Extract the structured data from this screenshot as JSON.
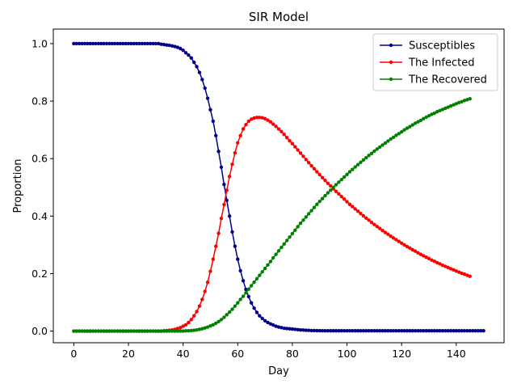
{
  "chart_data": {
    "type": "line",
    "title": "SIR Model",
    "xlabel": "Day",
    "ylabel": "Proportion",
    "xlim": [
      -7.5,
      157.5
    ],
    "ylim": [
      -0.0405,
      1.0505
    ],
    "xticks": [
      0,
      20,
      40,
      60,
      80,
      100,
      120,
      140
    ],
    "yticks": [
      0.0,
      0.2,
      0.4,
      0.6,
      0.8,
      1.0
    ],
    "xtick_labels": [
      "0",
      "20",
      "40",
      "60",
      "80",
      "100",
      "120",
      "140"
    ],
    "ytick_labels": [
      "0.0",
      "0.2",
      "0.4",
      "0.6",
      "0.8",
      "1.0"
    ],
    "legend_position": "top-right",
    "grid": false,
    "x_start": 0,
    "x_step": 1,
    "series": [
      {
        "name": "Susceptibles",
        "color": "#00008b",
        "values": [
          1.0,
          1.0,
          1.0,
          1.0,
          1.0,
          1.0,
          1.0,
          1.0,
          1.0,
          1.0,
          1.0,
          1.0,
          1.0,
          1.0,
          1.0,
          1.0,
          1.0,
          1.0,
          1.0,
          1.0,
          1.0,
          1.0,
          1.0,
          1.0,
          1.0,
          1.0,
          1.0,
          1.0,
          1.0,
          1.0,
          1.0,
          1.0,
          0.998,
          0.997,
          0.995,
          0.994,
          0.992,
          0.99,
          0.987,
          0.983,
          0.977,
          0.968,
          0.96,
          0.95,
          0.935,
          0.92,
          0.9,
          0.875,
          0.845,
          0.81,
          0.77,
          0.73,
          0.68,
          0.625,
          0.57,
          0.51,
          0.455,
          0.4,
          0.345,
          0.295,
          0.25,
          0.21,
          0.175,
          0.145,
          0.12,
          0.098,
          0.08,
          0.065,
          0.053,
          0.044,
          0.036,
          0.03,
          0.025,
          0.021,
          0.017,
          0.014,
          0.012,
          0.01,
          0.009,
          0.008,
          0.007,
          0.006,
          0.005,
          0.004,
          0.0035,
          0.003,
          0.0025,
          0.002,
          0.0018,
          0.0016,
          0.0014,
          0.0012,
          0.001,
          0.001,
          0.001,
          0.001,
          0.001,
          0.001,
          0.001,
          0.001,
          0.001,
          0.001,
          0.001,
          0.001,
          0.001,
          0.001,
          0.001,
          0.001,
          0.001,
          0.001,
          0.001,
          0.001,
          0.001,
          0.001,
          0.001,
          0.001,
          0.001,
          0.001,
          0.001,
          0.001,
          0.001,
          0.001,
          0.001,
          0.001,
          0.001,
          0.001,
          0.001,
          0.001,
          0.001,
          0.001,
          0.001,
          0.001,
          0.001,
          0.001,
          0.001,
          0.001,
          0.001,
          0.001,
          0.001,
          0.001,
          0.001,
          0.001,
          0.001,
          0.001,
          0.001,
          0.001,
          0.001,
          0.001,
          0.001,
          0.001,
          0.001
        ]
      },
      {
        "name": "The Infected",
        "color": "#ff0000",
        "values": [
          0.0,
          0.0,
          0.0,
          0.0,
          0.0,
          0.0,
          0.0,
          0.0,
          0.0,
          0.0,
          0.0,
          0.0,
          0.0,
          0.0,
          0.0,
          0.0,
          0.0,
          0.0,
          0.0,
          0.0,
          0.0,
          0.0,
          0.0,
          0.0,
          0.0,
          0.0,
          0.0,
          0.0,
          0.0,
          0.0,
          0.0,
          0.0,
          0.0,
          0.001,
          0.002,
          0.003,
          0.004,
          0.006,
          0.009,
          0.012,
          0.017,
          0.022,
          0.03,
          0.04,
          0.053,
          0.068,
          0.087,
          0.11,
          0.138,
          0.17,
          0.208,
          0.25,
          0.295,
          0.34,
          0.392,
          0.44,
          0.49,
          0.538,
          0.58,
          0.62,
          0.655,
          0.68,
          0.703,
          0.718,
          0.73,
          0.737,
          0.741,
          0.743,
          0.743,
          0.742,
          0.739,
          0.734,
          0.728,
          0.72,
          0.712,
          0.703,
          0.694,
          0.684,
          0.673,
          0.662,
          0.652,
          0.641,
          0.63,
          0.619,
          0.608,
          0.597,
          0.586,
          0.575,
          0.565,
          0.554,
          0.544,
          0.534,
          0.524,
          0.514,
          0.505,
          0.495,
          0.486,
          0.477,
          0.468,
          0.459,
          0.45,
          0.441,
          0.433,
          0.425,
          0.417,
          0.409,
          0.401,
          0.393,
          0.386,
          0.378,
          0.371,
          0.364,
          0.357,
          0.35,
          0.343,
          0.337,
          0.33,
          0.324,
          0.318,
          0.312,
          0.306,
          0.3,
          0.294,
          0.289,
          0.283,
          0.278,
          0.272,
          0.267,
          0.262,
          0.257,
          0.252,
          0.247,
          0.243,
          0.238,
          0.234,
          0.229,
          0.225,
          0.221,
          0.217,
          0.213,
          0.209,
          0.205,
          0.201,
          0.198,
          0.194,
          0.191
        ]
      },
      {
        "name": "The Recovered",
        "color": "#008000",
        "values": [
          0.0,
          0.0,
          0.0,
          0.0,
          0.0,
          0.0,
          0.0,
          0.0,
          0.0,
          0.0,
          0.0,
          0.0,
          0.0,
          0.0,
          0.0,
          0.0,
          0.0,
          0.0,
          0.0,
          0.0,
          0.0,
          0.0,
          0.0,
          0.0,
          0.0,
          0.0,
          0.0,
          0.0,
          0.0,
          0.0,
          0.0,
          0.0,
          0.0,
          0.0,
          0.0,
          0.0,
          0.0,
          0.0,
          0.0,
          0.0,
          0.0,
          0.001,
          0.001,
          0.002,
          0.003,
          0.004,
          0.006,
          0.008,
          0.011,
          0.014,
          0.018,
          0.022,
          0.027,
          0.033,
          0.04,
          0.048,
          0.057,
          0.066,
          0.076,
          0.087,
          0.098,
          0.11,
          0.121,
          0.133,
          0.146,
          0.158,
          0.17,
          0.182,
          0.194,
          0.206,
          0.218,
          0.23,
          0.242,
          0.255,
          0.267,
          0.279,
          0.291,
          0.303,
          0.315,
          0.327,
          0.339,
          0.351,
          0.363,
          0.375,
          0.386,
          0.397,
          0.408,
          0.419,
          0.43,
          0.441,
          0.451,
          0.461,
          0.471,
          0.481,
          0.49,
          0.5,
          0.509,
          0.518,
          0.527,
          0.536,
          0.545,
          0.554,
          0.562,
          0.571,
          0.579,
          0.587,
          0.595,
          0.603,
          0.611,
          0.618,
          0.626,
          0.633,
          0.64,
          0.647,
          0.654,
          0.661,
          0.668,
          0.674,
          0.681,
          0.687,
          0.693,
          0.7,
          0.706,
          0.711,
          0.717,
          0.723,
          0.728,
          0.733,
          0.739,
          0.744,
          0.749,
          0.754,
          0.758,
          0.763,
          0.767,
          0.771,
          0.775,
          0.779,
          0.783,
          0.787,
          0.791,
          0.795,
          0.798,
          0.802,
          0.805,
          0.808
        ]
      }
    ]
  }
}
